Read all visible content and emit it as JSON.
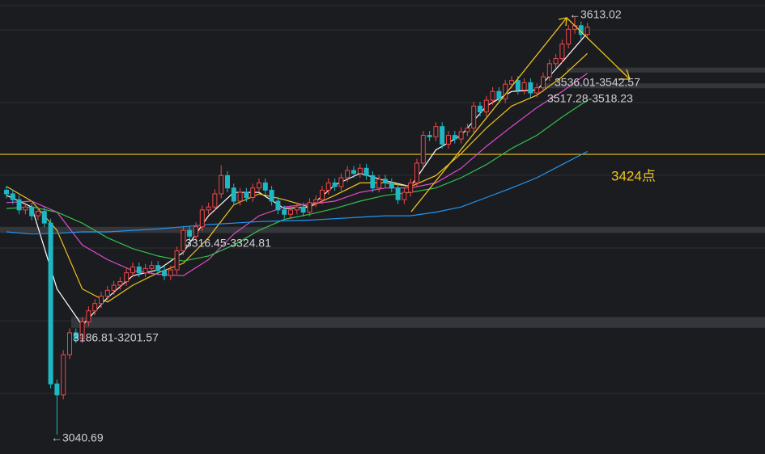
{
  "chart_data": {
    "type": "candlestick",
    "up_color": "#f04848",
    "down_color": "#1fb7c4",
    "open": [
      3375,
      3370,
      3362,
      3348,
      3352,
      3340,
      3346,
      3330,
      3110,
      3095,
      3150,
      3180,
      3172,
      3195,
      3210,
      3220,
      3230,
      3238,
      3245,
      3250,
      3262,
      3270,
      3262,
      3268,
      3272,
      3265,
      3258,
      3266,
      3292,
      3320,
      3312,
      3325,
      3348,
      3352,
      3370,
      3395,
      3378,
      3360,
      3372,
      3365,
      3378,
      3385,
      3375,
      3360,
      3348,
      3342,
      3348,
      3352,
      3345,
      3358,
      3362,
      3375,
      3385,
      3380,
      3392,
      3402,
      3398,
      3405,
      3395,
      3378,
      3390,
      3385,
      3378,
      3362,
      3372,
      3385,
      3412,
      3450,
      3448,
      3462,
      3438,
      3450,
      3445,
      3455,
      3460,
      3490,
      3482,
      3498,
      3510,
      3500,
      3520,
      3525,
      3512,
      3522,
      3508,
      3515,
      3530,
      3548,
      3555,
      3575,
      3595,
      3600,
      3588
    ],
    "high": [
      3381,
      3376,
      3368,
      3358,
      3358,
      3352,
      3352,
      3336,
      3116,
      3156,
      3186,
      3186,
      3201,
      3216,
      3226,
      3236,
      3244,
      3251,
      3256,
      3268,
      3276,
      3276,
      3274,
      3278,
      3278,
      3271,
      3272,
      3298,
      3326,
      3326,
      3331,
      3354,
      3358,
      3376,
      3409,
      3401,
      3384,
      3378,
      3378,
      3384,
      3391,
      3391,
      3381,
      3366,
      3354,
      3354,
      3358,
      3358,
      3364,
      3368,
      3381,
      3391,
      3391,
      3398,
      3408,
      3408,
      3411,
      3411,
      3401,
      3396,
      3396,
      3391,
      3384,
      3378,
      3391,
      3418,
      3456,
      3456,
      3468,
      3468,
      3456,
      3456,
      3461,
      3466,
      3496,
      3496,
      3504,
      3516,
      3516,
      3526,
      3531,
      3531,
      3528,
      3528,
      3521,
      3536,
      3554,
      3561,
      3581,
      3601,
      3613.02,
      3606,
      3604
    ],
    "low": [
      3364,
      3356,
      3342,
      3342,
      3334,
      3334,
      3324,
      3104,
      3040.69,
      3089,
      3144,
      3166,
      3166,
      3189,
      3204,
      3214,
      3224,
      3232,
      3239,
      3244,
      3256,
      3256,
      3256,
      3262,
      3259,
      3252,
      3252,
      3260,
      3286,
      3306,
      3306,
      3319,
      3342,
      3346,
      3364,
      3372,
      3354,
      3354,
      3359,
      3359,
      3372,
      3369,
      3354,
      3342,
      3336,
      3336,
      3342,
      3339,
      3339,
      3352,
      3356,
      3369,
      3374,
      3374,
      3386,
      3392,
      3392,
      3389,
      3372,
      3372,
      3379,
      3372,
      3356,
      3356,
      3366,
      3379,
      3406,
      3442,
      3442,
      3432,
      3432,
      3439,
      3439,
      3449,
      3454,
      3476,
      3476,
      3492,
      3494,
      3494,
      3514,
      3506,
      3506,
      3502,
      3502,
      3509,
      3524,
      3542,
      3549,
      3569,
      3589,
      3582,
      3582
    ],
    "close": [
      3370,
      3362,
      3348,
      3352,
      3340,
      3346,
      3330,
      3110,
      3095,
      3150,
      3180,
      3172,
      3195,
      3210,
      3220,
      3230,
      3238,
      3245,
      3250,
      3262,
      3270,
      3262,
      3268,
      3272,
      3265,
      3258,
      3266,
      3292,
      3320,
      3312,
      3325,
      3348,
      3352,
      3370,
      3395,
      3378,
      3360,
      3372,
      3365,
      3378,
      3385,
      3375,
      3360,
      3348,
      3342,
      3348,
      3352,
      3345,
      3358,
      3362,
      3375,
      3385,
      3380,
      3392,
      3402,
      3398,
      3405,
      3395,
      3378,
      3390,
      3385,
      3378,
      3362,
      3372,
      3385,
      3412,
      3450,
      3448,
      3462,
      3438,
      3450,
      3445,
      3455,
      3460,
      3490,
      3482,
      3498,
      3510,
      3500,
      3520,
      3525,
      3512,
      3522,
      3508,
      3515,
      3530,
      3548,
      3555,
      3575,
      3595,
      3600,
      3588,
      3598
    ],
    "ma_x": [
      0,
      4,
      8,
      12,
      16,
      20,
      24,
      28,
      32,
      36,
      40,
      44,
      48,
      52,
      56,
      60,
      64,
      68,
      72,
      76,
      80,
      84,
      88,
      92
    ],
    "lines": [
      {
        "color": "#ffffff",
        "values": [
          3368,
          3352,
          3240,
          3190,
          3228,
          3258,
          3266,
          3290,
          3340,
          3372,
          3372,
          3350,
          3352,
          3382,
          3398,
          3388,
          3380,
          3430,
          3450,
          3490,
          3510,
          3512,
          3550,
          3590
        ]
      },
      {
        "color": "#f0c21e",
        "values": [
          3380,
          3360,
          3320,
          3240,
          3222,
          3245,
          3262,
          3275,
          3310,
          3355,
          3370,
          3362,
          3352,
          3368,
          3385,
          3385,
          3380,
          3395,
          3425,
          3460,
          3490,
          3505,
          3530,
          3562
        ]
      },
      {
        "color": "#e04bcc",
        "values": [
          3358,
          3360,
          3345,
          3300,
          3280,
          3265,
          3260,
          3258,
          3280,
          3315,
          3340,
          3352,
          3356,
          3360,
          3372,
          3378,
          3378,
          3385,
          3405,
          3435,
          3462,
          3488,
          3510,
          3535
        ]
      },
      {
        "color": "#32c24a",
        "values": [
          3350,
          3352,
          3345,
          3330,
          3310,
          3295,
          3285,
          3278,
          3285,
          3300,
          3320,
          3335,
          3342,
          3350,
          3360,
          3368,
          3372,
          3378,
          3392,
          3410,
          3432,
          3450,
          3475,
          3498
        ]
      },
      {
        "color": "#2196f3",
        "values": [
          3318,
          3315,
          3316,
          3318,
          3318,
          3320,
          3322,
          3325,
          3328,
          3330,
          3332,
          3333,
          3334,
          3336,
          3338,
          3340,
          3340,
          3345,
          3352,
          3365,
          3378,
          3392,
          3410,
          3428
        ]
      }
    ],
    "level": 3424,
    "level_label": "3424点",
    "level_color": "#f0c21e",
    "zones": [
      {
        "label": "3536.01-3542.57",
        "low": 3536.01,
        "high": 3542.57
      },
      {
        "label": "3517.28-3518.23",
        "low": 3517.28,
        "high": 3518.23
      },
      {
        "label": "3316.45-3324.81",
        "low": 3316.45,
        "high": 3324.81
      },
      {
        "label": "3186.81-3201.57",
        "low": 3186.81,
        "high": 3201.57
      }
    ],
    "annotations": [
      "←3613.02",
      "←3040.69"
    ]
  }
}
